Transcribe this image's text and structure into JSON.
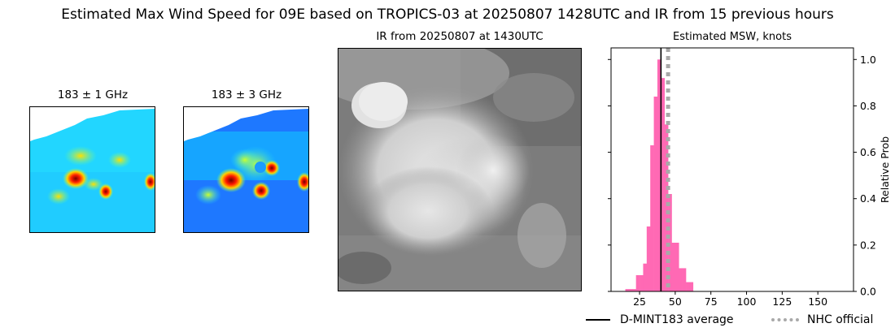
{
  "title": "Estimated Max Wind Speed for 09E based on TROPICS-03 at 20250807 1428UTC and IR from 15 previous hours",
  "panels": {
    "mw1": {
      "title": "183 ± 1 GHz",
      "icon": "microwave-brightness-temperature-image"
    },
    "mw2": {
      "title": "183 ± 3 GHz",
      "icon": "microwave-brightness-temperature-image"
    },
    "ir": {
      "title": "IR from 20250807 at 1430UTC",
      "icon": "infrared-satellite-image"
    }
  },
  "colors": {
    "histogram": "#ff69b4",
    "average_line": "#000000",
    "nhc_line": "#a9a9a9"
  },
  "chart_data": {
    "type": "bar",
    "title": "Estimated MSW, knots",
    "xlabel": "",
    "ylabel": "Relative Prob",
    "xlim": [
      5,
      175
    ],
    "ylim": [
      0,
      1.05
    ],
    "x_ticks": [
      25,
      50,
      75,
      100,
      125,
      150
    ],
    "y_ticks": [
      0.0,
      0.2,
      0.4,
      0.6,
      0.8,
      1.0
    ],
    "y_axis_side": "right",
    "bin_width": 2.5,
    "bins": [
      {
        "x": 16.25,
        "y": 0.01
      },
      {
        "x": 18.75,
        "y": 0.01
      },
      {
        "x": 21.25,
        "y": 0.01
      },
      {
        "x": 23.75,
        "y": 0.07
      },
      {
        "x": 26.25,
        "y": 0.07
      },
      {
        "x": 28.75,
        "y": 0.12
      },
      {
        "x": 31.25,
        "y": 0.28
      },
      {
        "x": 33.75,
        "y": 0.63
      },
      {
        "x": 36.25,
        "y": 0.84
      },
      {
        "x": 38.75,
        "y": 1.0
      },
      {
        "x": 41.25,
        "y": 0.92
      },
      {
        "x": 43.75,
        "y": 0.72
      },
      {
        "x": 46.25,
        "y": 0.42
      },
      {
        "x": 48.75,
        "y": 0.21
      },
      {
        "x": 51.25,
        "y": 0.21
      },
      {
        "x": 53.75,
        "y": 0.1
      },
      {
        "x": 56.25,
        "y": 0.1
      },
      {
        "x": 58.75,
        "y": 0.04
      },
      {
        "x": 61.25,
        "y": 0.04
      }
    ],
    "vlines": [
      {
        "name": "D-MINT183 average",
        "x": 40,
        "style": "solid"
      },
      {
        "name": "NHC official",
        "x": 45,
        "style": "dotted"
      }
    ],
    "legend_placement": "bottom-right"
  }
}
